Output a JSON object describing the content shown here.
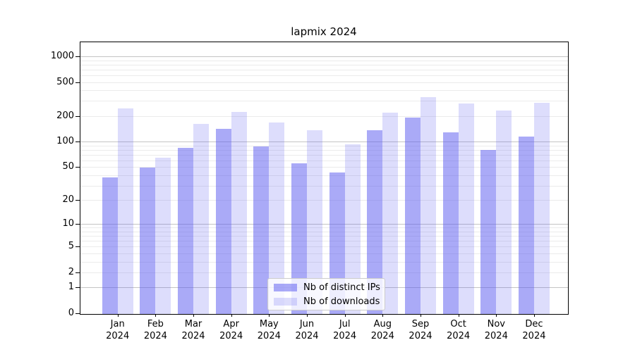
{
  "chart_data": {
    "type": "bar",
    "title": "lapmix 2024",
    "categories": [
      "Jan 2024",
      "Feb 2024",
      "Mar 2024",
      "Apr 2024",
      "May 2024",
      "Jun 2024",
      "Jul 2024",
      "Aug 2024",
      "Sep 2024",
      "Oct 2024",
      "Nov 2024",
      "Dec 2024"
    ],
    "series": [
      {
        "name": "Nb of distinct IPs",
        "values": [
          38,
          50,
          86,
          145,
          90,
          56,
          44,
          140,
          195,
          130,
          82,
          117
        ]
      },
      {
        "name": "Nb of downloads",
        "values": [
          251,
          66,
          166,
          226,
          172,
          138,
          95,
          223,
          341,
          284,
          236,
          291
        ]
      }
    ],
    "y_ticks": [
      0,
      1,
      2,
      5,
      10,
      20,
      50,
      100,
      200,
      500,
      1000
    ],
    "y_scale": "log-like: position proportional to log10(1+value)",
    "ylim": [
      0,
      1460
    ],
    "xlabel": "",
    "ylabel": "",
    "grid": "horizontal major and minor gridlines",
    "legend_position": "lower center inside plot"
  },
  "colors": {
    "bar_distinct_ips": "rgba(85,85,240,0.5)",
    "bar_downloads": "rgba(85,85,240,0.2)",
    "grid_major": "#c4c4c4",
    "grid_minor": "#ebebeb",
    "axis": "#000000",
    "legend_border": "#cccccc",
    "background": "#ffffff"
  }
}
